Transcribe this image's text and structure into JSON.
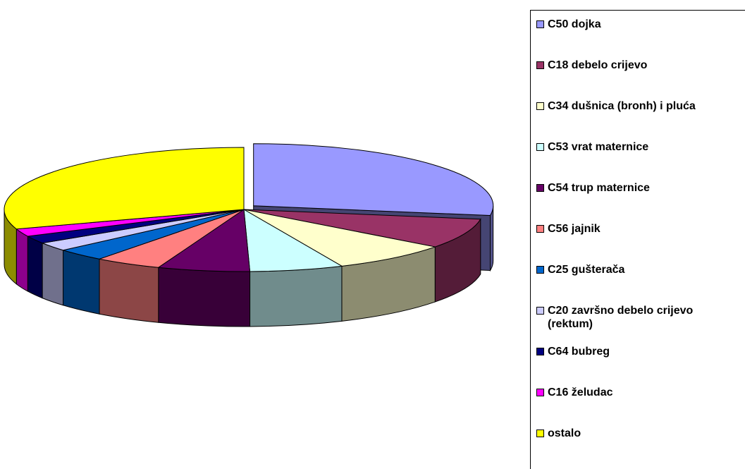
{
  "chart_data": {
    "type": "pie",
    "title": "",
    "slices": [
      {
        "label": "C50 dojka",
        "value": 27.5,
        "color": "#9999FF"
      },
      {
        "label": "C18 debelo crijevo",
        "value": 7.8,
        "color": "#993366"
      },
      {
        "label": "C34 dušnica (bronh) i pluća",
        "value": 8.0,
        "color": "#FFFFCC"
      },
      {
        "label": "C53 vrat maternice",
        "value": 6.3,
        "color": "#CCFFFF"
      },
      {
        "label": "C54 trup maternice",
        "value": 6.2,
        "color": "#660066"
      },
      {
        "label": "C56 jajnik",
        "value": 4.5,
        "color": "#FF8080"
      },
      {
        "label": "C25 gušterača",
        "value": 3.3,
        "color": "#0066CC"
      },
      {
        "label": "C20 završno debelo crijevo (rektum)",
        "value": 2.3,
        "color": "#CCCCFF"
      },
      {
        "label": "C64 bubreg",
        "value": 2.0,
        "color": "#000080"
      },
      {
        "label": "C16 želudac",
        "value": 2.0,
        "color": "#FF00FF"
      },
      {
        "label": "ostalo",
        "value": 30.1,
        "color": "#FFFF00"
      }
    ],
    "legend_position": "right",
    "style": "3d-exploded-first-slice"
  }
}
